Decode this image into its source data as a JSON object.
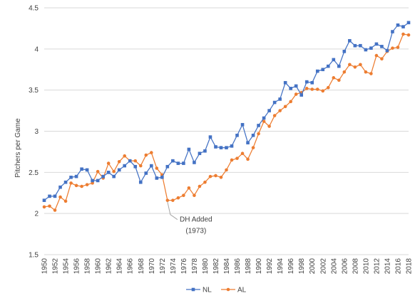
{
  "chart_data": {
    "type": "line",
    "title": "",
    "ylabel": "Pitchers per Game",
    "xlabel": "",
    "ylim": [
      1.5,
      4.5
    ],
    "yticks": [
      1.5,
      2,
      2.5,
      3,
      3.5,
      4,
      4.5
    ],
    "ytick_labels": [
      "1.5",
      "2",
      "2.5",
      "3",
      "3.5",
      "4",
      "4.5"
    ],
    "xlim": [
      1950,
      2018
    ],
    "xtick_labels": [
      "1950",
      "1952",
      "1954",
      "1956",
      "1958",
      "1960",
      "1962",
      "1964",
      "1966",
      "1968",
      "1970",
      "1972",
      "1974",
      "1976",
      "1978",
      "1980",
      "1982",
      "1984",
      "1986",
      "1988",
      "1990",
      "1992",
      "1994",
      "1996",
      "1998",
      "2000",
      "2002",
      "2004",
      "2006",
      "2008",
      "2010",
      "2012",
      "2014",
      "2016",
      "2018"
    ],
    "grid": "horizontal",
    "legend_position": "bottom",
    "x": [
      1950,
      1951,
      1952,
      1953,
      1954,
      1955,
      1956,
      1957,
      1958,
      1959,
      1960,
      1961,
      1962,
      1963,
      1964,
      1965,
      1966,
      1967,
      1968,
      1969,
      1970,
      1971,
      1972,
      1973,
      1974,
      1975,
      1976,
      1977,
      1978,
      1979,
      1980,
      1981,
      1982,
      1983,
      1984,
      1985,
      1986,
      1987,
      1988,
      1989,
      1990,
      1991,
      1992,
      1993,
      1994,
      1995,
      1996,
      1997,
      1998,
      1999,
      2000,
      2001,
      2002,
      2003,
      2004,
      2005,
      2006,
      2007,
      2008,
      2009,
      2010,
      2011,
      2012,
      2013,
      2014,
      2015,
      2016,
      2017,
      2018
    ],
    "series": [
      {
        "name": "NL",
        "color": "#4472C4",
        "marker": "square",
        "values": [
          2.16,
          2.21,
          2.21,
          2.32,
          2.38,
          2.44,
          2.45,
          2.54,
          2.53,
          2.4,
          2.4,
          2.45,
          2.5,
          2.45,
          2.53,
          2.58,
          2.64,
          2.57,
          2.38,
          2.49,
          2.58,
          2.43,
          2.44,
          2.57,
          2.64,
          2.61,
          2.61,
          2.78,
          2.62,
          2.73,
          2.76,
          2.93,
          2.81,
          2.8,
          2.8,
          2.82,
          2.95,
          3.08,
          2.86,
          2.95,
          3.07,
          3.16,
          3.25,
          3.35,
          3.39,
          3.59,
          3.52,
          3.55,
          3.44,
          3.6,
          3.59,
          3.73,
          3.75,
          3.79,
          3.87,
          3.79,
          3.97,
          4.1,
          4.04,
          4.04,
          3.99,
          4.01,
          4.06,
          4.03,
          3.98,
          4.21,
          4.29,
          4.27,
          4.32
        ]
      },
      {
        "name": "AL",
        "color": "#ED7D31",
        "marker": "circle",
        "values": [
          2.08,
          2.09,
          2.04,
          2.2,
          2.15,
          2.37,
          2.34,
          2.33,
          2.35,
          2.37,
          2.51,
          2.43,
          2.61,
          2.51,
          2.63,
          2.7,
          2.64,
          2.64,
          2.58,
          2.71,
          2.74,
          2.55,
          2.47,
          2.16,
          2.16,
          2.19,
          2.22,
          2.31,
          2.22,
          2.33,
          2.38,
          2.45,
          2.46,
          2.44,
          2.53,
          2.65,
          2.67,
          2.73,
          2.66,
          2.8,
          2.97,
          3.12,
          3.06,
          3.19,
          3.25,
          3.3,
          3.36,
          3.45,
          3.47,
          3.52,
          3.51,
          3.51,
          3.49,
          3.53,
          3.65,
          3.62,
          3.72,
          3.81,
          3.78,
          3.81,
          3.72,
          3.7,
          3.92,
          3.88,
          3.97,
          4.01,
          4.02,
          4.18,
          4.17
        ]
      }
    ],
    "annotations": [
      {
        "lines": [
          "DH Added",
          "(1973)"
        ],
        "x": 1973,
        "y": 2.16,
        "series": "AL"
      }
    ]
  }
}
